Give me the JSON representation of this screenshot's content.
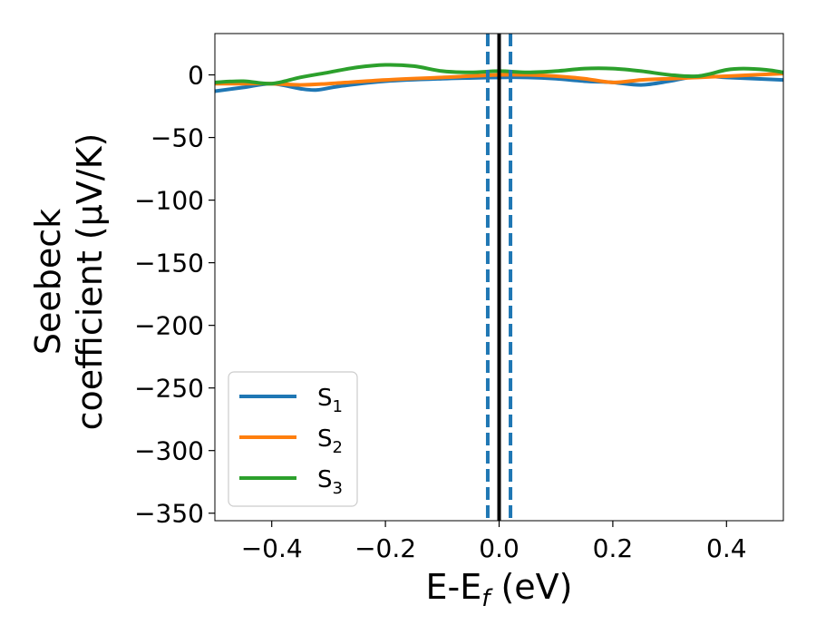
{
  "chart_data": {
    "type": "line",
    "xlabel": {
      "main": "E-E",
      "sub": "f",
      "unit": " (eV)"
    },
    "ylabel": {
      "line1": "Seebeck",
      "line2": "coefficient  (μV/K)"
    },
    "xlim": [
      -0.5,
      0.5
    ],
    "ylim": [
      -356,
      33
    ],
    "xticks": [
      -0.4,
      -0.2,
      0.0,
      0.2,
      0.4
    ],
    "xtick_labels": [
      "−0.4",
      "−0.2",
      "0.0",
      "0.2",
      "0.4"
    ],
    "yticks": [
      0,
      -50,
      -100,
      -150,
      -200,
      -250,
      -300,
      -350
    ],
    "ytick_labels": [
      "0",
      "−50",
      "−100",
      "−150",
      "−200",
      "−250",
      "−300",
      "−350"
    ],
    "grid": false,
    "legend_position": "bottom-left",
    "vlines": [
      {
        "x": 0.0,
        "style": "solid",
        "color": "#000000"
      },
      {
        "x": -0.02,
        "style": "dashed",
        "color": "#1f77b4"
      },
      {
        "x": 0.02,
        "style": "dashed",
        "color": "#1f77b4"
      }
    ],
    "series": [
      {
        "name": "S",
        "sub": "1",
        "color": "#1f77b4",
        "x": [
          -0.5,
          -0.45,
          -0.4,
          -0.35,
          -0.32,
          -0.28,
          -0.2,
          -0.1,
          0.0,
          0.05,
          0.1,
          0.15,
          0.2,
          0.25,
          0.3,
          0.35,
          0.4,
          0.45,
          0.5
        ],
        "y": [
          -13,
          -10,
          -7,
          -11,
          -12,
          -9,
          -5,
          -3,
          -2,
          -2,
          -3,
          -5,
          -6,
          -8,
          -5,
          -1,
          -2,
          -3,
          -4
        ]
      },
      {
        "name": "S",
        "sub": "2",
        "color": "#ff7f0e",
        "x": [
          -0.5,
          -0.45,
          -0.4,
          -0.35,
          -0.3,
          -0.2,
          -0.1,
          0.0,
          0.05,
          0.1,
          0.15,
          0.2,
          0.25,
          0.3,
          0.35,
          0.4,
          0.45,
          0.5
        ],
        "y": [
          -7,
          -7,
          -7,
          -8,
          -7,
          -4,
          -2,
          0,
          0,
          -1,
          -3,
          -6,
          -4,
          -3,
          -2,
          -1,
          0,
          1
        ]
      },
      {
        "name": "S",
        "sub": "3",
        "color": "#2ca02c",
        "x": [
          -0.5,
          -0.45,
          -0.4,
          -0.35,
          -0.3,
          -0.25,
          -0.2,
          -0.15,
          -0.1,
          -0.05,
          0.0,
          0.05,
          0.1,
          0.15,
          0.2,
          0.25,
          0.3,
          0.35,
          0.4,
          0.43,
          0.47,
          0.5
        ],
        "y": [
          -6,
          -5,
          -7,
          -2,
          2,
          6,
          8,
          7,
          3,
          2,
          3,
          2,
          3,
          5,
          5,
          3,
          0,
          -1,
          4,
          5,
          4,
          2
        ]
      }
    ]
  }
}
